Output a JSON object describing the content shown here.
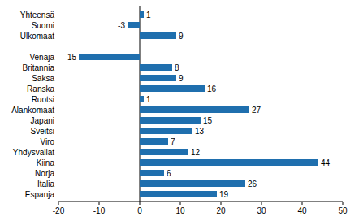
{
  "chart_data": {
    "type": "bar",
    "orientation": "horizontal",
    "categories": [
      "Yhteensä",
      "Suomi",
      "Ulkomaat",
      null,
      "Venäjä",
      "Britannia",
      "Saksa",
      "Ranska",
      "Ruotsi",
      "Alankomaat",
      "Japani",
      "Sveitsi",
      "Viro",
      "Yhdysvallat",
      "Kiina",
      "Norja",
      "Italia",
      "Espanja"
    ],
    "values": [
      1,
      -3,
      9,
      null,
      -15,
      8,
      9,
      16,
      1,
      27,
      15,
      13,
      7,
      12,
      44,
      6,
      26,
      19
    ],
    "color": "#1f6fae",
    "xlim": [
      -20,
      50
    ],
    "xticks": [
      -20,
      -10,
      0,
      10,
      20,
      30,
      40,
      50
    ],
    "grid": false,
    "data_labels": true
  }
}
